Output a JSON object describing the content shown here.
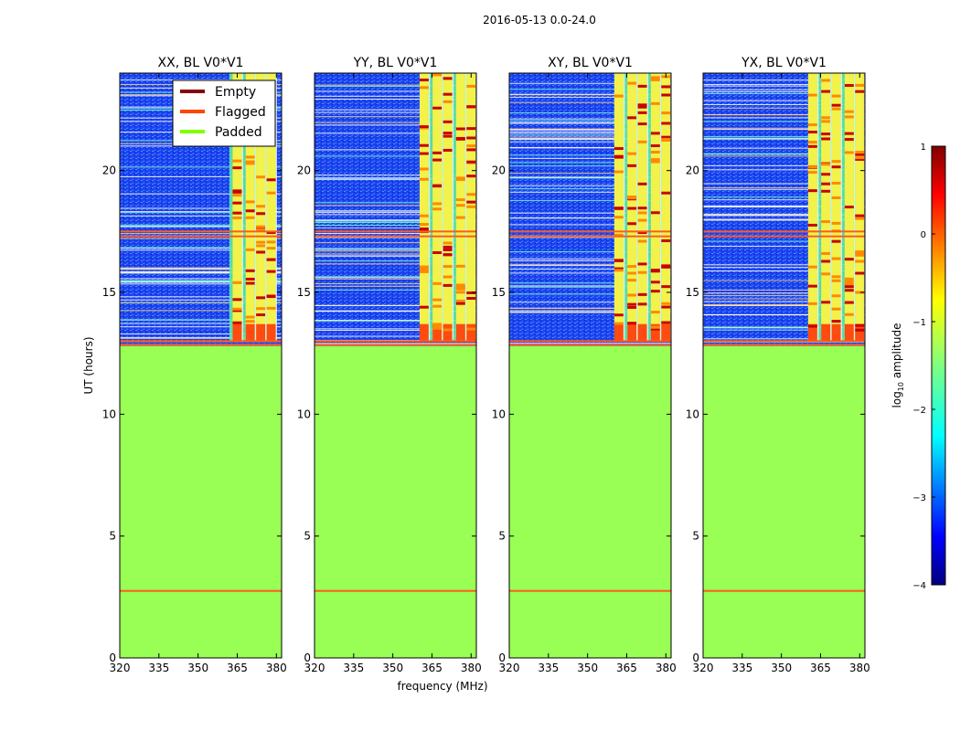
{
  "chart_data": {
    "type": "heatmap",
    "suptitle": "2016-05-13 0.0-24.0",
    "xlabel": "frequency (MHz)",
    "ylabel": "UT (hours)",
    "xlim": [
      320,
      382
    ],
    "ylim": [
      0,
      24
    ],
    "xticks": [
      320,
      335,
      350,
      365,
      380
    ],
    "yticks": [
      0,
      5,
      10,
      15,
      20
    ],
    "panels": [
      {
        "title": "XX, BL V0*V1",
        "band_columns": [
          365,
          370,
          374,
          378
        ],
        "strong_rows_end": 13.7
      },
      {
        "title": "YY, BL V0*V1",
        "band_columns": [
          362,
          367,
          371,
          376,
          380
        ],
        "strong_rows_end": 13.7
      },
      {
        "title": "XY, BL V0*V1",
        "band_columns": [
          362,
          367,
          371,
          376,
          380
        ],
        "strong_rows_end": 13.7
      },
      {
        "title": "YX, BL V0*V1",
        "band_columns": [
          362,
          367,
          371,
          376,
          380
        ],
        "strong_rows_end": 13.7
      }
    ],
    "band_range_mhz": [
      362,
      380
    ],
    "padded_region_hours": [
      0,
      12.8
    ],
    "flagged_rows_hours": [
      2.75,
      12.85,
      13.0,
      17.5,
      17.3
    ],
    "legend": {
      "placement": "top-right of first panel",
      "entries": [
        {
          "label": "Empty",
          "color": "#8b0000"
        },
        {
          "label": "Flagged",
          "color": "#ff4500"
        },
        {
          "label": "Padded",
          "color": "#7fff00"
        }
      ]
    },
    "colorbar": {
      "label": "log10 amplitude",
      "range": [
        -4,
        1
      ],
      "ticks": [
        1,
        0,
        -1,
        -2,
        -3,
        -4
      ],
      "colormap": "jet"
    }
  },
  "colors": {
    "padded_fill": "#99ff55",
    "background_low": "#1a3cf0",
    "flag_line": "#ff5a1f",
    "empty": "#8b0000"
  }
}
